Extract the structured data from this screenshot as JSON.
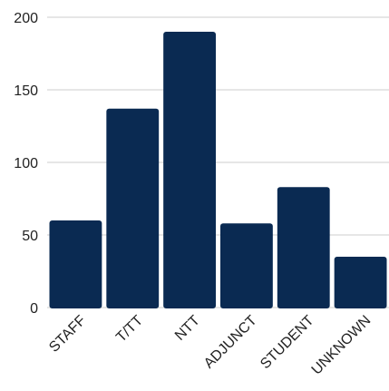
{
  "chart_data": {
    "type": "bar",
    "categories": [
      "STAFF",
      "T/TT",
      "NTT",
      "ADJUNCT",
      "STUDENT",
      "UNKNOWN"
    ],
    "values": [
      60,
      137,
      190,
      58,
      83,
      35
    ],
    "ylim": [
      0,
      200
    ],
    "yticks": [
      "0",
      "50",
      "100",
      "150",
      "200"
    ],
    "grid": true,
    "bar_color": "#0a2a52",
    "grid_color": "#cccccc",
    "text_color": "#222222"
  }
}
